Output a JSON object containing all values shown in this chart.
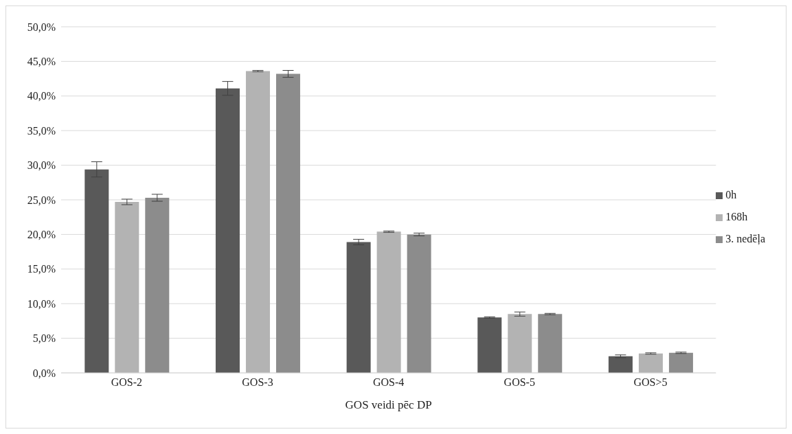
{
  "chart_data": {
    "type": "bar",
    "xlabel": "GOS veidi pēc DP",
    "categories": [
      "GOS-2",
      "GOS-3",
      "GOS-4",
      "GOS-5",
      "GOS>5"
    ],
    "series": [
      {
        "name": "0h",
        "color": "#595959",
        "values": [
          29.4,
          41.1,
          18.9,
          8.0,
          2.4
        ],
        "errors": [
          1.1,
          1.0,
          0.4,
          0.1,
          0.2
        ]
      },
      {
        "name": "168h",
        "color": "#b3b3b3",
        "values": [
          24.7,
          43.6,
          20.4,
          8.5,
          2.8
        ],
        "errors": [
          0.4,
          0.1,
          0.1,
          0.3,
          0.1
        ]
      },
      {
        "name": "3. nedēļa",
        "color": "#8c8c8c",
        "values": [
          25.3,
          43.2,
          20.0,
          8.5,
          2.9
        ],
        "errors": [
          0.5,
          0.5,
          0.2,
          0.1,
          0.1
        ]
      }
    ],
    "ylim": [
      0,
      50
    ],
    "yticks": [
      {
        "value": 0,
        "label": "0,0%"
      },
      {
        "value": 5,
        "label": "5,0%"
      },
      {
        "value": 10,
        "label": "10,0%"
      },
      {
        "value": 15,
        "label": "15,0%"
      },
      {
        "value": 20,
        "label": "20,0%"
      },
      {
        "value": 25,
        "label": "25,0%"
      },
      {
        "value": 30,
        "label": "30,0%"
      },
      {
        "value": 35,
        "label": "35,0%"
      },
      {
        "value": 40,
        "label": "40,0%"
      },
      {
        "value": 45,
        "label": "45,0%"
      },
      {
        "value": 50,
        "label": "50,0%"
      }
    ],
    "grid": "y",
    "legend": "right"
  }
}
